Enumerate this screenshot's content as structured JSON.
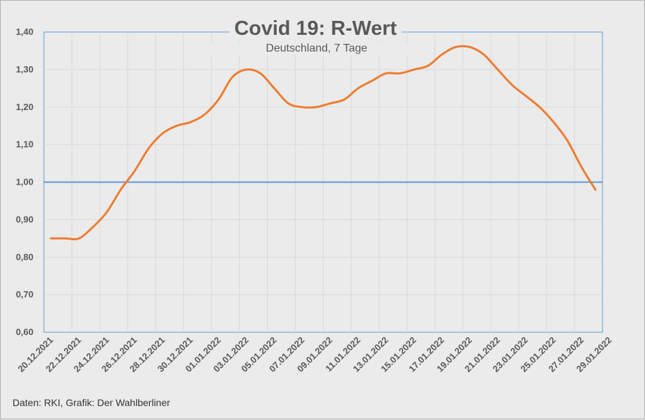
{
  "chart_data": {
    "type": "line",
    "title": "Covid 19: R-Wert",
    "subtitle": "Deutschland, 7 Tage",
    "source": "Daten: RKI, Grafik: Der Wahlberliner",
    "ylim": [
      0.6,
      1.4
    ],
    "yticks": [
      "0,60",
      "0,70",
      "0,80",
      "0,90",
      "1,00",
      "1,10",
      "1,20",
      "1,30",
      "1,40"
    ],
    "xtick_labels": [
      "20.12.2021",
      "22.12.2021",
      "24.12.2021",
      "26.12.2021",
      "28.12.2021",
      "30.12.2021",
      "01.01.2022",
      "03.01.2022",
      "05.01.2022",
      "07.01.2022",
      "09.01.2022",
      "11.01.2022",
      "13.01.2022",
      "15.01.2022",
      "17.01.2022",
      "19.01.2022",
      "21.01.2022",
      "23.01.2022",
      "25.01.2022",
      "27.01.2022",
      "29.01.2022"
    ],
    "x": [
      "20.12.2021",
      "21.12.2021",
      "22.12.2021",
      "23.12.2021",
      "24.12.2021",
      "25.12.2021",
      "26.12.2021",
      "27.12.2021",
      "28.12.2021",
      "29.12.2021",
      "30.12.2021",
      "31.12.2021",
      "01.01.2022",
      "02.01.2022",
      "03.01.2022",
      "04.01.2022",
      "05.01.2022",
      "06.01.2022",
      "07.01.2022",
      "08.01.2022",
      "09.01.2022",
      "10.01.2022",
      "11.01.2022",
      "12.01.2022",
      "13.01.2022",
      "14.01.2022",
      "15.01.2022",
      "16.01.2022",
      "17.01.2022",
      "18.01.2022",
      "19.01.2022",
      "20.01.2022",
      "21.01.2022",
      "22.01.2022",
      "23.01.2022",
      "24.01.2022",
      "25.01.2022",
      "26.01.2022",
      "27.01.2022",
      "28.01.2022"
    ],
    "series": [
      {
        "name": "",
        "color": "#ed7d31",
        "values": [
          0.85,
          0.85,
          0.85,
          0.88,
          0.92,
          0.98,
          1.03,
          1.09,
          1.13,
          1.15,
          1.16,
          1.18,
          1.22,
          1.28,
          1.3,
          1.29,
          1.25,
          1.21,
          1.2,
          1.2,
          1.21,
          1.22,
          1.25,
          1.27,
          1.29,
          1.29,
          1.3,
          1.31,
          1.34,
          1.36,
          1.36,
          1.34,
          1.3,
          1.26,
          1.23,
          1.2,
          1.16,
          1.11,
          1.04,
          0.98
        ]
      }
    ],
    "reference_line": {
      "value": 1.0,
      "color": "#5b9bd5"
    },
    "grid": true
  }
}
